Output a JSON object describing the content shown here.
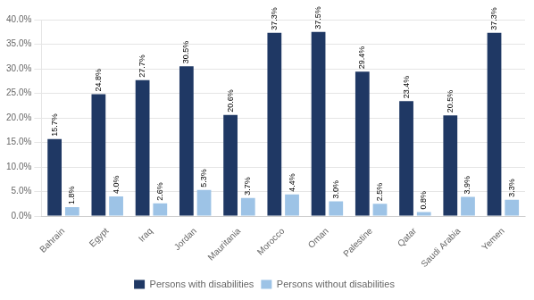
{
  "chart_data": {
    "type": "bar",
    "categories": [
      "Bahrain",
      "Egypt",
      "Iraq",
      "Jordan",
      "Mauritania",
      "Morocco",
      "Oman",
      "Palestine",
      "Qatar",
      "Saudi Arabia",
      "Yemen"
    ],
    "series": [
      {
        "name": "Persons with disabilities",
        "color": "#1F3864",
        "values": [
          15.7,
          24.8,
          27.7,
          30.5,
          20.6,
          37.3,
          37.5,
          29.4,
          23.4,
          20.5,
          37.3
        ],
        "value_labels": [
          "15.7%",
          "24.8%",
          "27.7%",
          "30.5%",
          "20.6%",
          "37.3%",
          "37.5%",
          "29.4%",
          "23.4%",
          "20.5%",
          "37.3%"
        ]
      },
      {
        "name": "Persons without disabilities",
        "color": "#9DC3E6",
        "values": [
          1.8,
          4.0,
          2.6,
          5.3,
          3.7,
          4.4,
          3.0,
          2.5,
          0.8,
          3.9,
          3.3
        ],
        "value_labels": [
          "1.8%",
          "4.0%",
          "2.6%",
          "5.3%",
          "3.7%",
          "4.4%",
          "3.0%",
          "2.5%",
          "0.8%",
          "3.9%",
          "3.3%"
        ]
      }
    ],
    "ylim": [
      0,
      40
    ],
    "yticks": [
      {
        "value": 0,
        "label": "0.0%"
      },
      {
        "value": 5,
        "label": "5.0%"
      },
      {
        "value": 10,
        "label": "10.0%"
      },
      {
        "value": 15,
        "label": "15.0%"
      },
      {
        "value": 20,
        "label": "20.0%"
      },
      {
        "value": 25,
        "label": "25.0%"
      },
      {
        "value": 30,
        "label": "30.0%"
      },
      {
        "value": 35,
        "label": "35.0%"
      },
      {
        "value": 40,
        "label": "40.0%"
      }
    ],
    "grid": true,
    "legend": "bottom",
    "data_labels": true
  }
}
